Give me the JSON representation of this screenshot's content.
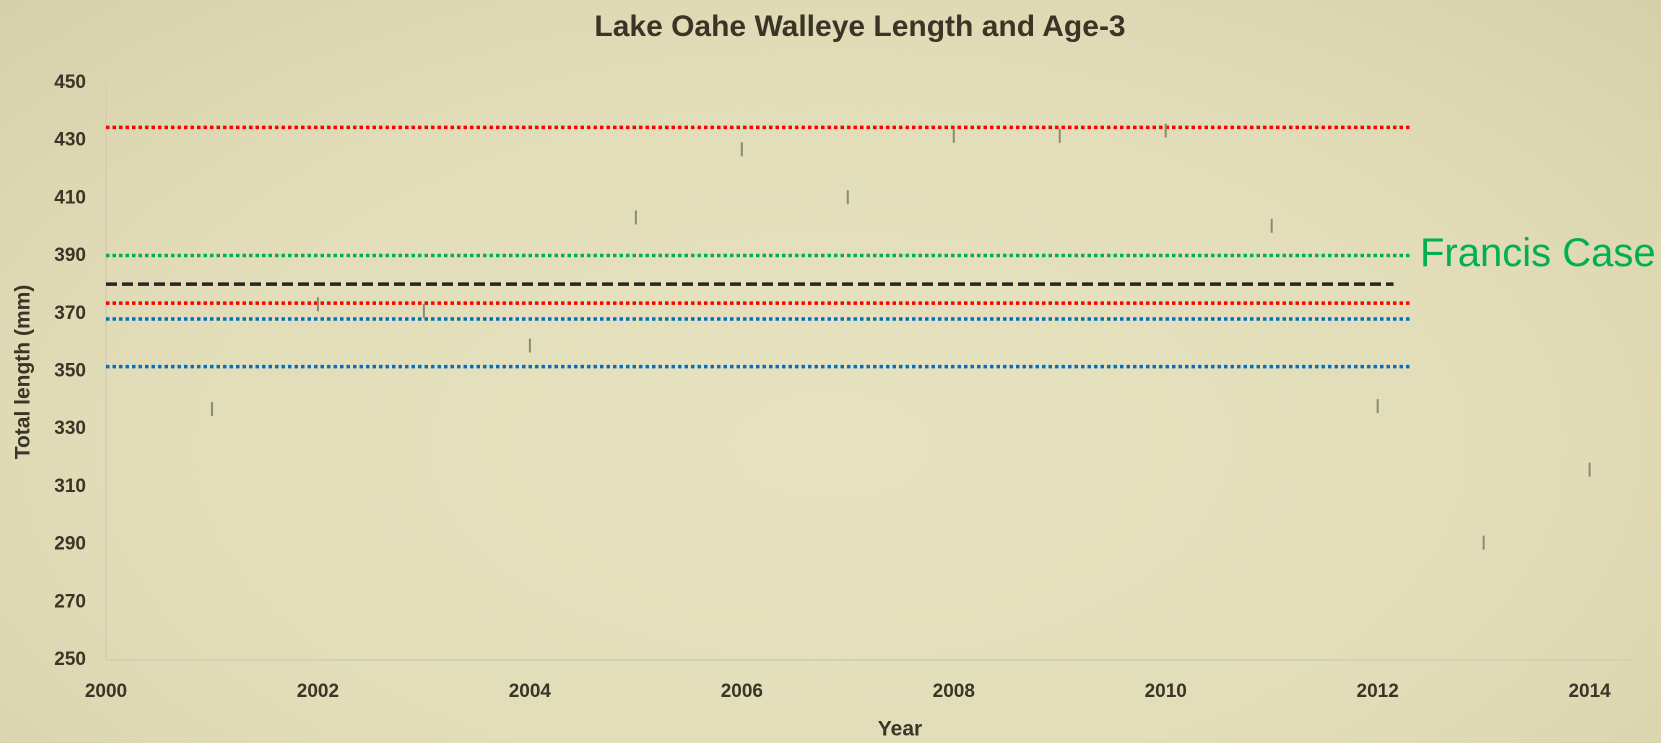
{
  "chart_data": {
    "type": "scatter",
    "title": "Lake Oahe Walleye Length and Age-3",
    "x_label": "Year",
    "y_label": "Total length (mm)",
    "x": [
      2001,
      2002,
      2003,
      2004,
      2005,
      2006,
      2007,
      2008,
      2009,
      2010,
      2011,
      2012,
      2013,
      2014
    ],
    "values": [
      337,
      373.3,
      371,
      359,
      403.4,
      427,
      410.4,
      431.7,
      431.7,
      433.5,
      400.5,
      338,
      290.7,
      316
    ],
    "color": "#8c8a72",
    "xlim": [
      2000,
      2014.4
    ],
    "ylim": [
      250,
      450
    ],
    "xticks": [
      2000,
      2002,
      2004,
      2006,
      2008,
      2010,
      2012,
      2014
    ],
    "yticks": [
      250,
      270,
      290,
      310,
      330,
      350,
      370,
      390,
      410,
      430,
      450
    ],
    "lines": [
      {
        "color": "#ff0000",
        "style": "dotted",
        "x": [
          2000,
          2012.3
        ],
        "values": [
          434.6,
          434.6
        ]
      },
      {
        "color": "#00b050",
        "style": "dotted",
        "x": [
          2000,
          2012.3
        ],
        "values": [
          390.2,
          390.2
        ]
      },
      {
        "color": "#262626",
        "style": "dashed",
        "x": [
          2000,
          2012.15
        ],
        "values": [
          380.3,
          380.3
        ]
      },
      {
        "color": "#ff0000",
        "style": "dotted",
        "x": [
          2000,
          2012.3
        ],
        "values": [
          373.7,
          373.7
        ]
      },
      {
        "color": "#0070c0",
        "style": "dotted",
        "x": [
          2000,
          2012.3
        ],
        "values": [
          368.2,
          368.2
        ]
      },
      {
        "color": "#0070c0",
        "style": "dotted",
        "x": [
          2000,
          2012.3
        ],
        "values": [
          351.7,
          351.7
        ]
      }
    ],
    "annotations": [
      {
        "text": "Francis Case",
        "color": "#00b050"
      }
    ]
  }
}
